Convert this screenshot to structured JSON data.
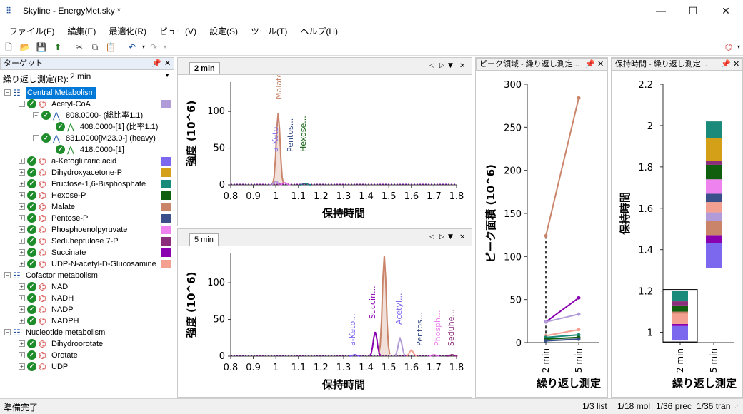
{
  "window": {
    "title": "Skyline - EnergyMet.sky *"
  },
  "menu": [
    "ファイル(F)",
    "編集(E)",
    "最適化(R)",
    "ビュー(V)",
    "設定(S)",
    "ツール(T)",
    "ヘルプ(H)"
  ],
  "targets": {
    "header": "ターゲット",
    "replicate_label": "繰り返し測定(R):",
    "replicate_value": "2 min",
    "groups": [
      {
        "name": "Central Metabolism",
        "selected": true
      },
      {
        "name": "Cofactor metabolism"
      },
      {
        "name": "Nucleotide metabolism"
      }
    ],
    "acetylcoa": {
      "name": "Acetyl-CoA",
      "precursor1": "808.0000- (総比率1.1)",
      "transition1": "408.0000-[1] (比率1.1)",
      "precursor2": "831.0000[M23.0-] (heavy)",
      "transition2": "418.0000-[1]"
    },
    "central": [
      {
        "name": "a-Ketoglutaric acid",
        "color": "#7b68ee"
      },
      {
        "name": "Dihydroxyacetone-P",
        "color": "#d4a017"
      },
      {
        "name": "Fructose-1,6-Bisphosphate",
        "color": "#1a8a7a"
      },
      {
        "name": "Hexose-P",
        "color": "#0f5f0f"
      },
      {
        "name": "Malate",
        "color": "#c9846a"
      },
      {
        "name": "Pentose-P",
        "color": "#3b4f8a"
      },
      {
        "name": "Phosphoenolpyruvate",
        "color": "#ee82ee"
      },
      {
        "name": "Seduheptulose 7-P",
        "color": "#8b2d7a"
      },
      {
        "name": "Succinate",
        "color": "#8a00b0"
      },
      {
        "name": "UDP-N-acetyl-D-Glucosamine",
        "color": "#f4a090"
      }
    ],
    "acetyl_color": "#b19cd9",
    "cofactor": [
      "NAD",
      "NADH",
      "NADP",
      "NADPH"
    ],
    "nucleotide": [
      "Dihydroorotate",
      "Orotate",
      "UDP"
    ]
  },
  "chrom1": {
    "tab": "2 min",
    "ylabel": "強度 (10^6)",
    "xlabel": "保持時間",
    "yticks": [
      "0",
      "50",
      "100"
    ],
    "xticks": [
      "0.8",
      "0.9",
      "1",
      "1.1",
      "1.2",
      "1.3",
      "1.4",
      "1.5",
      "1.6",
      "1.7",
      "1.8"
    ],
    "labels": [
      "Malate",
      "a-Keto...",
      "Pentos...",
      "Hexose..."
    ]
  },
  "chrom2": {
    "tab": "5 min",
    "ylabel": "強度 (10^6)",
    "xlabel": "保持時間",
    "yticks": [
      "0",
      "50",
      "100"
    ],
    "xticks": [
      "0.8",
      "0.9",
      "1",
      "1.1",
      "1.2",
      "1.3",
      "1.4",
      "1.5",
      "1.6",
      "1.7",
      "1.8"
    ],
    "labels": [
      "Succin...",
      "a-Keto...",
      "Acetyl...",
      "Pentos...",
      "Phosph...",
      "Seduhe..."
    ]
  },
  "peakarea": {
    "header": "ピーク領域 - 繰り返し測定...",
    "ylabel": "ピーク面積 (10^6)",
    "xlabel": "繰り返し測定",
    "yticks": [
      "0",
      "50",
      "100",
      "150",
      "200",
      "250",
      "300"
    ],
    "xticks": [
      "2 min",
      "5 min"
    ]
  },
  "rt": {
    "header": "保持時間 - 繰り返し測定...",
    "ylabel": "保持時間",
    "xlabel": "繰り返し測定",
    "yticks": [
      "1",
      "1.2",
      "1.4",
      "1.6",
      "1.8",
      "2",
      "2.2"
    ],
    "xticks": [
      "2 min",
      "5 min"
    ]
  },
  "chart_data": [
    {
      "type": "line",
      "title": "2 min",
      "xlabel": "保持時間",
      "ylabel": "強度 (10^6)",
      "xlim": [
        0.8,
        1.8
      ],
      "ylim": [
        0,
        140
      ],
      "series": [
        {
          "name": "Malate",
          "peak_x": 1.01,
          "peak_y": 98
        },
        {
          "name": "a-Keto...",
          "peak_x": 1.0,
          "peak_y": 5
        },
        {
          "name": "Pentos...",
          "peak_x": 1.04,
          "peak_y": 3
        },
        {
          "name": "Hexose...",
          "peak_x": 1.13,
          "peak_y": 2
        }
      ]
    },
    {
      "type": "line",
      "title": "5 min",
      "xlabel": "保持時間",
      "ylabel": "強度 (10^6)",
      "xlim": [
        0.8,
        1.8
      ],
      "ylim": [
        0,
        140
      ],
      "series": [
        {
          "name": "Malate",
          "peak_x": 1.48,
          "peak_y": 137
        },
        {
          "name": "Succin...",
          "peak_x": 1.44,
          "peak_y": 33
        },
        {
          "name": "Acetyl...",
          "peak_x": 1.55,
          "peak_y": 24
        },
        {
          "name": "a-Keto...",
          "peak_x": 1.35,
          "peak_y": 2
        },
        {
          "name": "Pentos...",
          "peak_x": 1.6,
          "peak_y": 8
        },
        {
          "name": "Phosph...",
          "peak_x": 1.7,
          "peak_y": 2
        },
        {
          "name": "Seduhe...",
          "peak_x": 1.78,
          "peak_y": 2
        }
      ]
    },
    {
      "type": "line",
      "xlabel": "繰り返し測定",
      "ylabel": "ピーク面積 (10^6)",
      "categories": [
        "2 min",
        "5 min"
      ],
      "ylim": [
        0,
        300
      ],
      "series": [
        {
          "name": "Malate",
          "values": [
            124,
            284
          ],
          "color": "#c9846a"
        },
        {
          "name": "Succinate",
          "values": [
            24,
            52
          ],
          "color": "#8a00b0"
        },
        {
          "name": "Acetyl-CoA",
          "values": [
            24,
            33
          ],
          "color": "#b19cd9"
        },
        {
          "name": "UDP-N-acetyl-D-Glucosamine",
          "values": [
            8,
            15
          ],
          "color": "#f4a090"
        },
        {
          "name": "Fructose-1,6-Bisphosphate",
          "values": [
            6,
            9
          ],
          "color": "#1a8a7a"
        },
        {
          "name": "Hexose-P",
          "values": [
            4,
            6
          ],
          "color": "#0f5f0f"
        },
        {
          "name": "Pentose-P",
          "values": [
            2,
            4
          ],
          "color": "#3b4f8a"
        }
      ]
    },
    {
      "type": "bar",
      "xlabel": "繰り返し測定",
      "ylabel": "保持時間",
      "categories": [
        "2 min",
        "5 min"
      ],
      "ylim": [
        0.95,
        2.2
      ],
      "stacks": [
        {
          "category": "2 min",
          "segments": [
            {
              "from": 0.96,
              "to": 1.03,
              "color": "#7b68ee"
            },
            {
              "from": 1.03,
              "to": 1.04,
              "color": "#8a00b0"
            },
            {
              "from": 1.04,
              "to": 1.09,
              "color": "#f4a090"
            },
            {
              "from": 1.09,
              "to": 1.1,
              "color": "#c9846a"
            },
            {
              "from": 1.1,
              "to": 1.13,
              "color": "#0f5f0f"
            },
            {
              "from": 1.13,
              "to": 1.15,
              "color": "#8b2d7a"
            },
            {
              "from": 1.15,
              "to": 1.2,
              "color": "#1a8a7a"
            }
          ]
        },
        {
          "category": "5 min",
          "segments": [
            {
              "from": 1.31,
              "to": 1.43,
              "color": "#7b68ee"
            },
            {
              "from": 1.43,
              "to": 1.47,
              "color": "#8a00b0"
            },
            {
              "from": 1.47,
              "to": 1.54,
              "color": "#c9846a"
            },
            {
              "from": 1.54,
              "to": 1.58,
              "color": "#b19cd9"
            },
            {
              "from": 1.58,
              "to": 1.63,
              "color": "#f4a090"
            },
            {
              "from": 1.63,
              "to": 1.67,
              "color": "#3b4f8a"
            },
            {
              "from": 1.67,
              "to": 1.74,
              "color": "#ee82ee"
            },
            {
              "from": 1.74,
              "to": 1.81,
              "color": "#0f5f0f"
            },
            {
              "from": 1.81,
              "to": 1.83,
              "color": "#8b2d7a"
            },
            {
              "from": 1.83,
              "to": 1.94,
              "color": "#d4a017"
            },
            {
              "from": 1.94,
              "to": 2.02,
              "color": "#1a8a7a"
            }
          ]
        }
      ]
    }
  ],
  "status": {
    "left": "準備完了",
    "right": [
      "1/3 list",
      "1/18 mol",
      "1/36 prec",
      "1/36 tran"
    ]
  }
}
